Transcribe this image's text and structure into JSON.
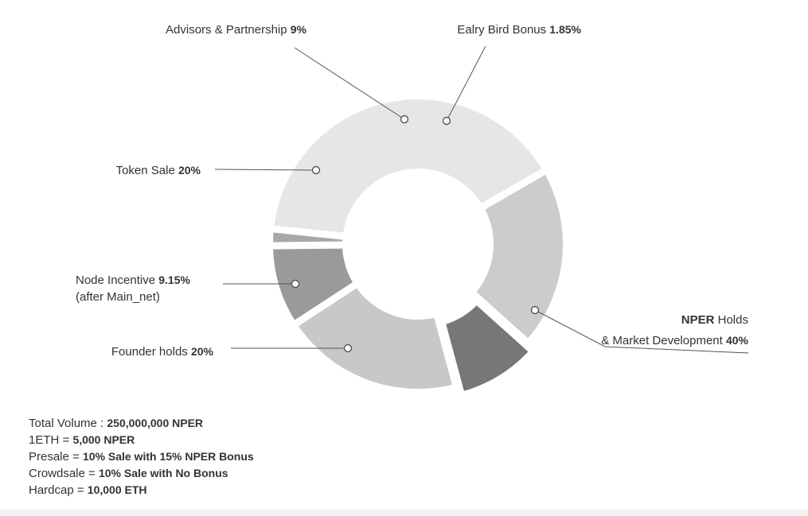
{
  "chart_data": {
    "type": "pie",
    "title": "",
    "style": "donut",
    "slices": [
      {
        "key": "market",
        "label_main": "NPER",
        "label_rest": " Holds",
        "label_line2": "& Market Development ",
        "value_text": "40%",
        "value": 40,
        "color": "#e6e6e6"
      },
      {
        "key": "founder",
        "label_main": "Founder holds ",
        "value_text": "20%",
        "value": 20,
        "color": "#cccccc"
      },
      {
        "key": "node",
        "label_main": "Node Incentive ",
        "value_text": "9.15%",
        "label_line2": "(after Main_net)",
        "value": 9.15,
        "color": "#777777"
      },
      {
        "key": "token",
        "label_main": "Token Sale ",
        "value_text": "20%",
        "value": 20,
        "color": "#c8c8c8"
      },
      {
        "key": "advisors",
        "label_main": "Advisors & Partnership ",
        "value_text": "9%",
        "value": 9,
        "color": "#9a9a9a"
      },
      {
        "key": "bonus",
        "label_main": "Ealry Bird Bonus ",
        "value_text": "1.85%",
        "value": 1.85,
        "color": "#a8a8a8"
      }
    ]
  },
  "info": {
    "lines": [
      {
        "label": "Total Volume : ",
        "value": "250,000,000 NPER"
      },
      {
        "label": "1ETH = ",
        "value": "5,000 NPER"
      },
      {
        "label": "Presale = ",
        "value": "10% Sale with 15% NPER Bonus"
      },
      {
        "label": "Crowdsale = ",
        "value": "10% Sale with No Bonus"
      },
      {
        "label": "Hardcap = ",
        "value": "10,000 ETH"
      }
    ]
  }
}
